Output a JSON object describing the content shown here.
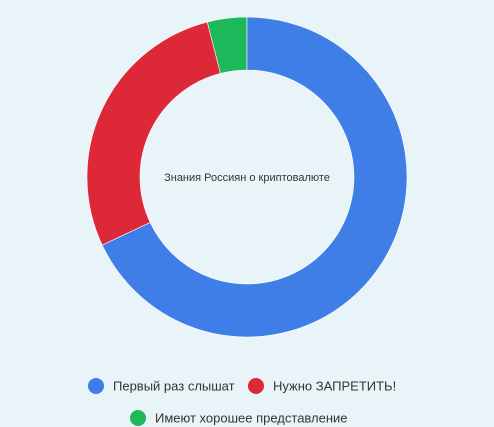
{
  "chart_data": {
    "type": "donut",
    "title": "Знания Россиян о криптовалюте",
    "categories": [
      "Первый раз слышат",
      "Нужно ЗАПРЕТИТЬ!",
      "Имеют хорошее представление"
    ],
    "values": [
      68,
      28,
      4
    ],
    "colors": [
      "#3e7ee6",
      "#dc2837",
      "#1cb85a"
    ]
  }
}
